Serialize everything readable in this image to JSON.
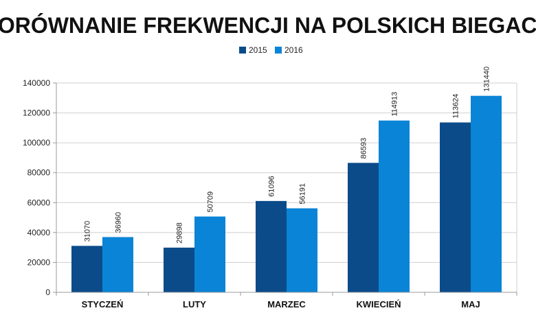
{
  "chart_data": {
    "type": "bar",
    "title": "PORÓWNANIE FREKWENCJI NA POLSKICH BIEGACH",
    "xlabel": "",
    "ylabel": "",
    "categories": [
      "STYCZEŃ",
      "LUTY",
      "MARZEC",
      "KWIECIEŃ",
      "MAJ"
    ],
    "series": [
      {
        "name": "2015",
        "color": "#0b4b8a",
        "values": [
          31070,
          29898,
          61096,
          86593,
          113624
        ]
      },
      {
        "name": "2016",
        "color": "#0a84d6",
        "values": [
          36960,
          50709,
          56191,
          114913,
          131440
        ]
      }
    ],
    "ylim": [
      0,
      140000
    ],
    "y_ticks": [
      "0",
      "20000",
      "40000",
      "60000",
      "80000",
      "100000",
      "120000",
      "140000"
    ],
    "grid": true,
    "legend_position": "top-center"
  }
}
